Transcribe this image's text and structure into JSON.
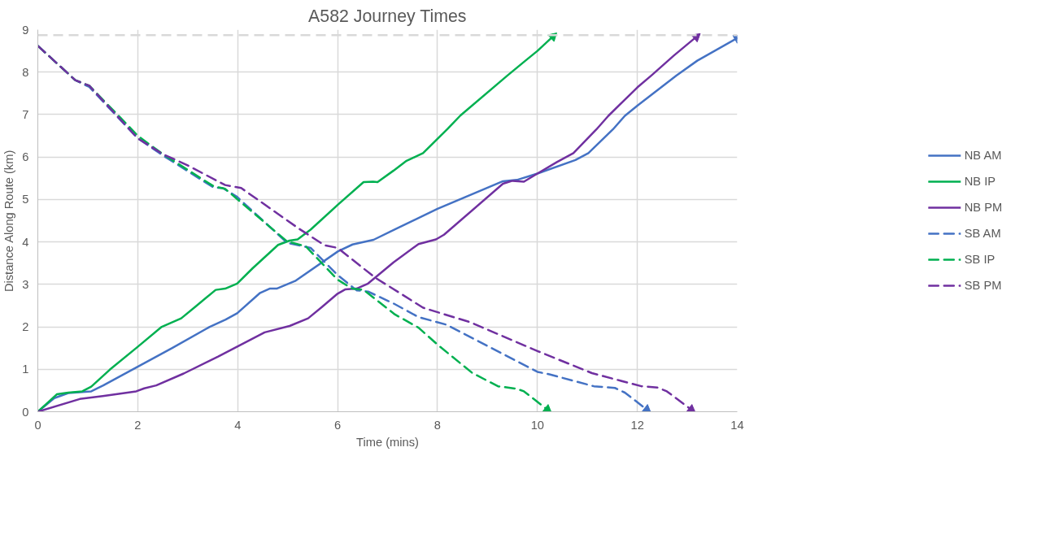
{
  "chart_data": {
    "type": "line",
    "title": "A582 Journey Times",
    "xlabel": "Time (mins)",
    "ylabel": "Distance Along Route (km)",
    "xlim": [
      0,
      14
    ],
    "ylim": [
      0,
      9
    ],
    "xticks": [
      0,
      2,
      4,
      6,
      8,
      10,
      12,
      14
    ],
    "yticks": [
      0,
      1,
      2,
      3,
      4,
      5,
      6,
      7,
      8,
      9
    ],
    "grid": true,
    "legend": "right",
    "line_style": "solid",
    "ref_lines": [
      {
        "axis": "y",
        "value": 8.87,
        "color": "#d9d9d9",
        "line_style": "dashed"
      }
    ],
    "series": [
      {
        "name": "NB AM",
        "color": "#4472c4",
        "x": [
          0,
          0.33,
          0.61,
          1.07,
          1.31,
          2,
          2.69,
          3.44,
          3.76,
          3.99,
          4.45,
          4.64,
          4.78,
          5.15,
          6.01,
          6.3,
          6.72,
          7.14,
          8,
          9.31,
          9.59,
          10,
          10.76,
          11.02,
          11.51,
          11.75,
          12,
          12.78,
          13.2,
          14
        ],
        "values": [
          0,
          0.32,
          0.44,
          0.48,
          0.62,
          1.06,
          1.5,
          2.0,
          2.17,
          2.32,
          2.8,
          2.9,
          2.9,
          3.08,
          3.78,
          3.94,
          4.05,
          4.29,
          4.78,
          5.43,
          5.46,
          5.61,
          5.93,
          6.09,
          6.65,
          6.97,
          7.21,
          7.92,
          8.27,
          8.8
        ]
      },
      {
        "name": "NB IP",
        "color": "#00b050",
        "x": [
          0,
          0.38,
          0.61,
          0.89,
          1.07,
          1.44,
          2,
          2.48,
          2.87,
          3.15,
          3.56,
          3.75,
          3.99,
          4.3,
          4.81,
          5.04,
          5.2,
          5.46,
          6,
          6.52,
          6.71,
          6.8,
          7.12,
          7.38,
          7.71,
          8.2,
          8.46,
          9.4,
          9.75,
          10,
          10.31
        ],
        "values": [
          0,
          0.41,
          0.45,
          0.48,
          0.59,
          0.99,
          1.53,
          2.0,
          2.2,
          2.47,
          2.87,
          2.9,
          3.02,
          3.38,
          3.93,
          4.03,
          4.06,
          4.29,
          4.87,
          5.41,
          5.42,
          5.41,
          5.68,
          5.91,
          6.09,
          6.66,
          6.98,
          7.92,
          8.26,
          8.5,
          8.84
        ]
      },
      {
        "name": "NB PM",
        "color": "#7030a0",
        "x": [
          0,
          0.84,
          1.3,
          1.97,
          2.13,
          2.37,
          2.92,
          3.61,
          4.54,
          5.04,
          5.41,
          5.69,
          6,
          6.15,
          6.38,
          6.61,
          7.12,
          7.62,
          7.97,
          8.13,
          9.31,
          9.5,
          9.73,
          10,
          10.39,
          10.72,
          11.18,
          11.42,
          12,
          12.29,
          12.73,
          13.18
        ],
        "values": [
          0,
          0.3,
          0.37,
          0.48,
          0.55,
          0.62,
          0.9,
          1.3,
          1.87,
          2.02,
          2.2,
          2.47,
          2.78,
          2.88,
          2.9,
          3.02,
          3.52,
          3.95,
          4.06,
          4.17,
          5.37,
          5.44,
          5.42,
          5.61,
          5.88,
          6.09,
          6.65,
          6.97,
          7.64,
          7.93,
          8.39,
          8.83
        ]
      },
      {
        "name": "SB AM",
        "color": "#4472c4",
        "line_style": "dashed",
        "x": [
          0,
          0.75,
          1.03,
          2,
          2.5,
          3.52,
          3.7,
          3.98,
          4.99,
          5.46,
          6,
          6.38,
          6.61,
          7.12,
          7.62,
          8.18,
          10,
          10.24,
          11.13,
          11.55,
          11.75,
          12.19
        ],
        "values": [
          8.62,
          7.81,
          7.65,
          6.44,
          6.04,
          5.28,
          5.27,
          5.07,
          3.98,
          3.86,
          3.22,
          2.86,
          2.83,
          2.55,
          2.23,
          2.05,
          0.94,
          0.88,
          0.6,
          0.56,
          0.45,
          0.05
        ]
      },
      {
        "name": "SB IP",
        "color": "#00b050",
        "line_style": "dashed",
        "x": [
          0,
          0.75,
          1.03,
          1.8,
          2,
          2.5,
          3.52,
          3.75,
          4.99,
          5.36,
          6,
          6.29,
          6.52,
          7.15,
          7.62,
          8,
          8.7,
          9.21,
          9.59,
          9.73,
          10.2
        ],
        "values": [
          8.62,
          7.81,
          7.68,
          6.75,
          6.5,
          6.07,
          5.31,
          5.25,
          4.01,
          3.9,
          3.11,
          2.9,
          2.87,
          2.29,
          1.98,
          1.58,
          0.91,
          0.6,
          0.54,
          0.48,
          0.05
        ]
      },
      {
        "name": "SB PM",
        "color": "#7030a0",
        "line_style": "dashed",
        "x": [
          0,
          0.75,
          1.03,
          2,
          2.5,
          2.97,
          3.75,
          4.07,
          5.23,
          5.74,
          6,
          6.75,
          7.05,
          7.71,
          8.65,
          10,
          11.09,
          12.08,
          12.4,
          12.59,
          13.08
        ],
        "values": [
          8.62,
          7.81,
          7.68,
          6.44,
          6.07,
          5.82,
          5.34,
          5.27,
          4.31,
          3.92,
          3.86,
          3.16,
          2.94,
          2.45,
          2.11,
          1.43,
          0.91,
          0.6,
          0.57,
          0.48,
          0.05
        ]
      }
    ]
  }
}
